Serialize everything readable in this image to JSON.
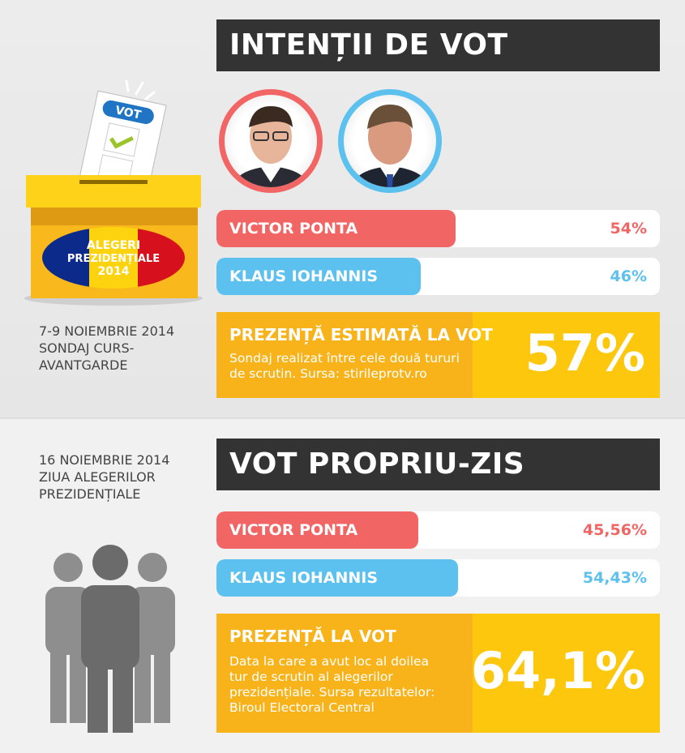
{
  "colors": {
    "ponta": "#f26565",
    "iohannis": "#5cc1ee",
    "turnout": "#fdc70d",
    "turnout_dark": "#f8b31a",
    "header": "#333333"
  },
  "ballot_box": {
    "ballot_label": "VOT",
    "box_label_1": "ALEGERI",
    "box_label_2": "PREZIDENȚIALE",
    "box_label_3": "2014"
  },
  "poll": {
    "title": "INTENȚII DE VOT",
    "side_text": [
      "7-9 NOIEMBRIE 2014",
      "SONDAJ CURS-",
      "AVANTGARDE"
    ],
    "candidates": [
      {
        "name": "VICTOR PONTA",
        "value": 54,
        "label": "54%"
      },
      {
        "name": "KLAUS IOHANNIS",
        "value": 46,
        "label": "46%"
      }
    ],
    "turnout": {
      "title": "PREZENȚĂ ESTIMATĂ LA VOT",
      "desc": [
        "Sondaj realizat între cele două tururi",
        "de scrutin. Sursa: stirileprotv.ro"
      ],
      "value": "57%"
    }
  },
  "vote": {
    "title": "VOT PROPRIU-ZIS",
    "side_text": [
      "16 NOIEMBRIE 2014",
      "ZIUA ALEGERILOR",
      "PREZIDENȚIALE"
    ],
    "candidates": [
      {
        "name": "VICTOR PONTA",
        "value": 45.56,
        "label": "45,56%"
      },
      {
        "name": "KLAUS IOHANNIS",
        "value": 54.43,
        "label": "54,43%"
      }
    ],
    "turnout": {
      "title": "PREZENȚĂ LA VOT",
      "desc": [
        "Data la care a avut loc al doilea",
        "tur de scrutin al alegerilor",
        "prezidențiale. Sursa rezultatelor:",
        "Biroul Electoral Central"
      ],
      "value": "64,1%"
    }
  },
  "chart_data": [
    {
      "type": "bar",
      "title": "INTENȚII DE VOT",
      "categories": [
        "VICTOR PONTA",
        "KLAUS IOHANNIS"
      ],
      "values": [
        54,
        46
      ],
      "unit": "%",
      "xlim": [
        0,
        100
      ]
    },
    {
      "type": "bar",
      "title": "VOT PROPRIU-ZIS",
      "categories": [
        "VICTOR PONTA",
        "KLAUS IOHANNIS"
      ],
      "values": [
        45.56,
        54.43
      ],
      "unit": "%",
      "xlim": [
        0,
        100
      ]
    }
  ]
}
